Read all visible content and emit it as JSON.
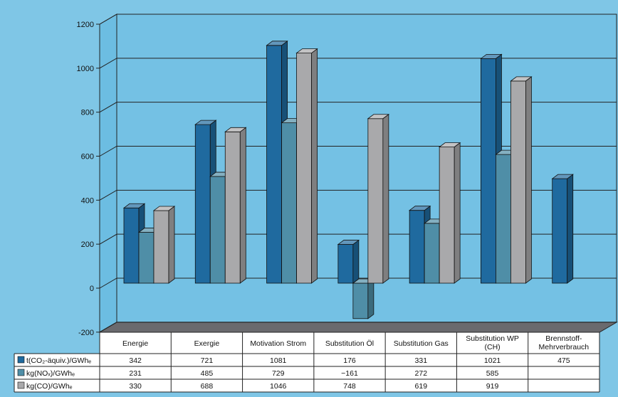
{
  "chart_data": {
    "type": "bar",
    "categories": [
      "Energie",
      "Exergie",
      "Motivation Strom",
      "Substitution Öl",
      "Substitution Gas",
      "Substitution WP (CH)",
      "Brennstoff-Mehrverbrauch"
    ],
    "category_lines": [
      [
        "Energie"
      ],
      [
        "Exergie"
      ],
      [
        "Motivation Strom"
      ],
      [
        "Substitution Öl"
      ],
      [
        "Substitution Gas"
      ],
      [
        "Substitution WP",
        "(CH)"
      ],
      [
        "Brennstoff-",
        "Mehrverbrauch"
      ]
    ],
    "series": [
      {
        "name": "t(CO₂-äquiv.)/GWhₑ",
        "color": "#1f6a9f",
        "values": [
          342,
          721,
          1081,
          176,
          331,
          1021,
          475
        ]
      },
      {
        "name": "kg(NOₓ)/GWhₑ",
        "color": "#4f8ea7",
        "values": [
          231,
          485,
          729,
          -161,
          272,
          585,
          null
        ]
      },
      {
        "name": "kg(CO)/GWhₑ",
        "color": "#a9a9ab",
        "values": [
          330,
          688,
          1046,
          748,
          619,
          919,
          null
        ]
      }
    ],
    "table_values": [
      [
        "342",
        "721",
        "1081",
        "176",
        "331",
        "1021",
        "475"
      ],
      [
        "231",
        "485",
        "729",
        "−161",
        "272",
        "585",
        ""
      ],
      [
        "330",
        "688",
        "1046",
        "748",
        "619",
        "919",
        ""
      ]
    ],
    "yticks": [
      -200,
      0,
      200,
      400,
      600,
      800,
      1000,
      1200
    ],
    "ylim": [
      -200,
      1200
    ],
    "title": "",
    "xlabel": "",
    "ylabel": "",
    "grid": true,
    "legend": "data-table-left"
  }
}
